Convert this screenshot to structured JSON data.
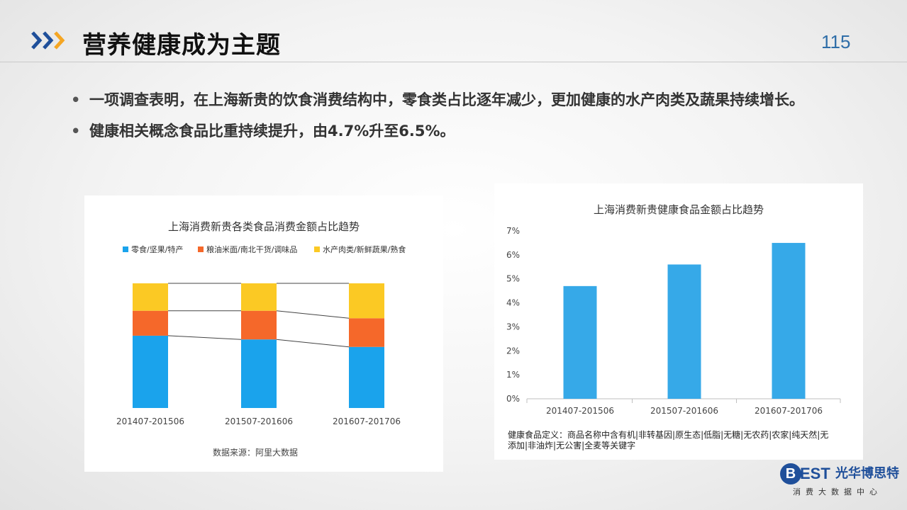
{
  "header": {
    "title": "营养健康成为主题",
    "page_number": "115",
    "accent_color": "#2f6ea8",
    "chevron_colors": [
      "#1f4f9a",
      "#f5a623"
    ]
  },
  "bullets": [
    "一项调查表明，在上海新贵的饮食消费结构中，零食类占比逐年减少，更加健康的水产肉类及蔬果持续增长。",
    "健康相关概念食品比重持续提升，由4.7%升至6.5%。"
  ],
  "chart_data": [
    {
      "type": "bar",
      "stacked": true,
      "title": "上海消费新贵各类食品消费金额占比趋势",
      "categories": [
        "201407-201506",
        "201507-201606",
        "201607-201706"
      ],
      "series": [
        {
          "name": "零食/坚果/特产",
          "color": "#1aa3ec",
          "values": [
            0.58,
            0.55,
            0.49
          ]
        },
        {
          "name": "粮油米面/南北干货/调味品",
          "color": "#f5682a",
          "values": [
            0.2,
            0.23,
            0.23
          ]
        },
        {
          "name": "水产肉类/新鲜蔬果/熟食",
          "color": "#fbc924",
          "values": [
            0.22,
            0.22,
            0.28
          ]
        }
      ],
      "connector_lines": true,
      "source": "数据来源：阿里大数据"
    },
    {
      "type": "bar",
      "title": "上海消费新贵健康食品金额占比趋势",
      "categories": [
        "201407-201506",
        "201507-201606",
        "201607-201706"
      ],
      "values": [
        4.7,
        5.6,
        6.5
      ],
      "color": "#36a9e8",
      "ylim": [
        0,
        7
      ],
      "yticks": [
        "0%",
        "1%",
        "2%",
        "3%",
        "4%",
        "5%",
        "6%",
        "7%"
      ],
      "definition": [
        "健康食品定义：商品名称中含有机|非转基因|原生态|低脂|无糖|无农药|农家|纯天然|无",
        "添加|非油炸|无公害|全麦等关键字"
      ]
    }
  ],
  "logo": {
    "mark": "B",
    "est": "EST",
    "name": "光华博思特",
    "subtitle": "消费大数据中心"
  }
}
